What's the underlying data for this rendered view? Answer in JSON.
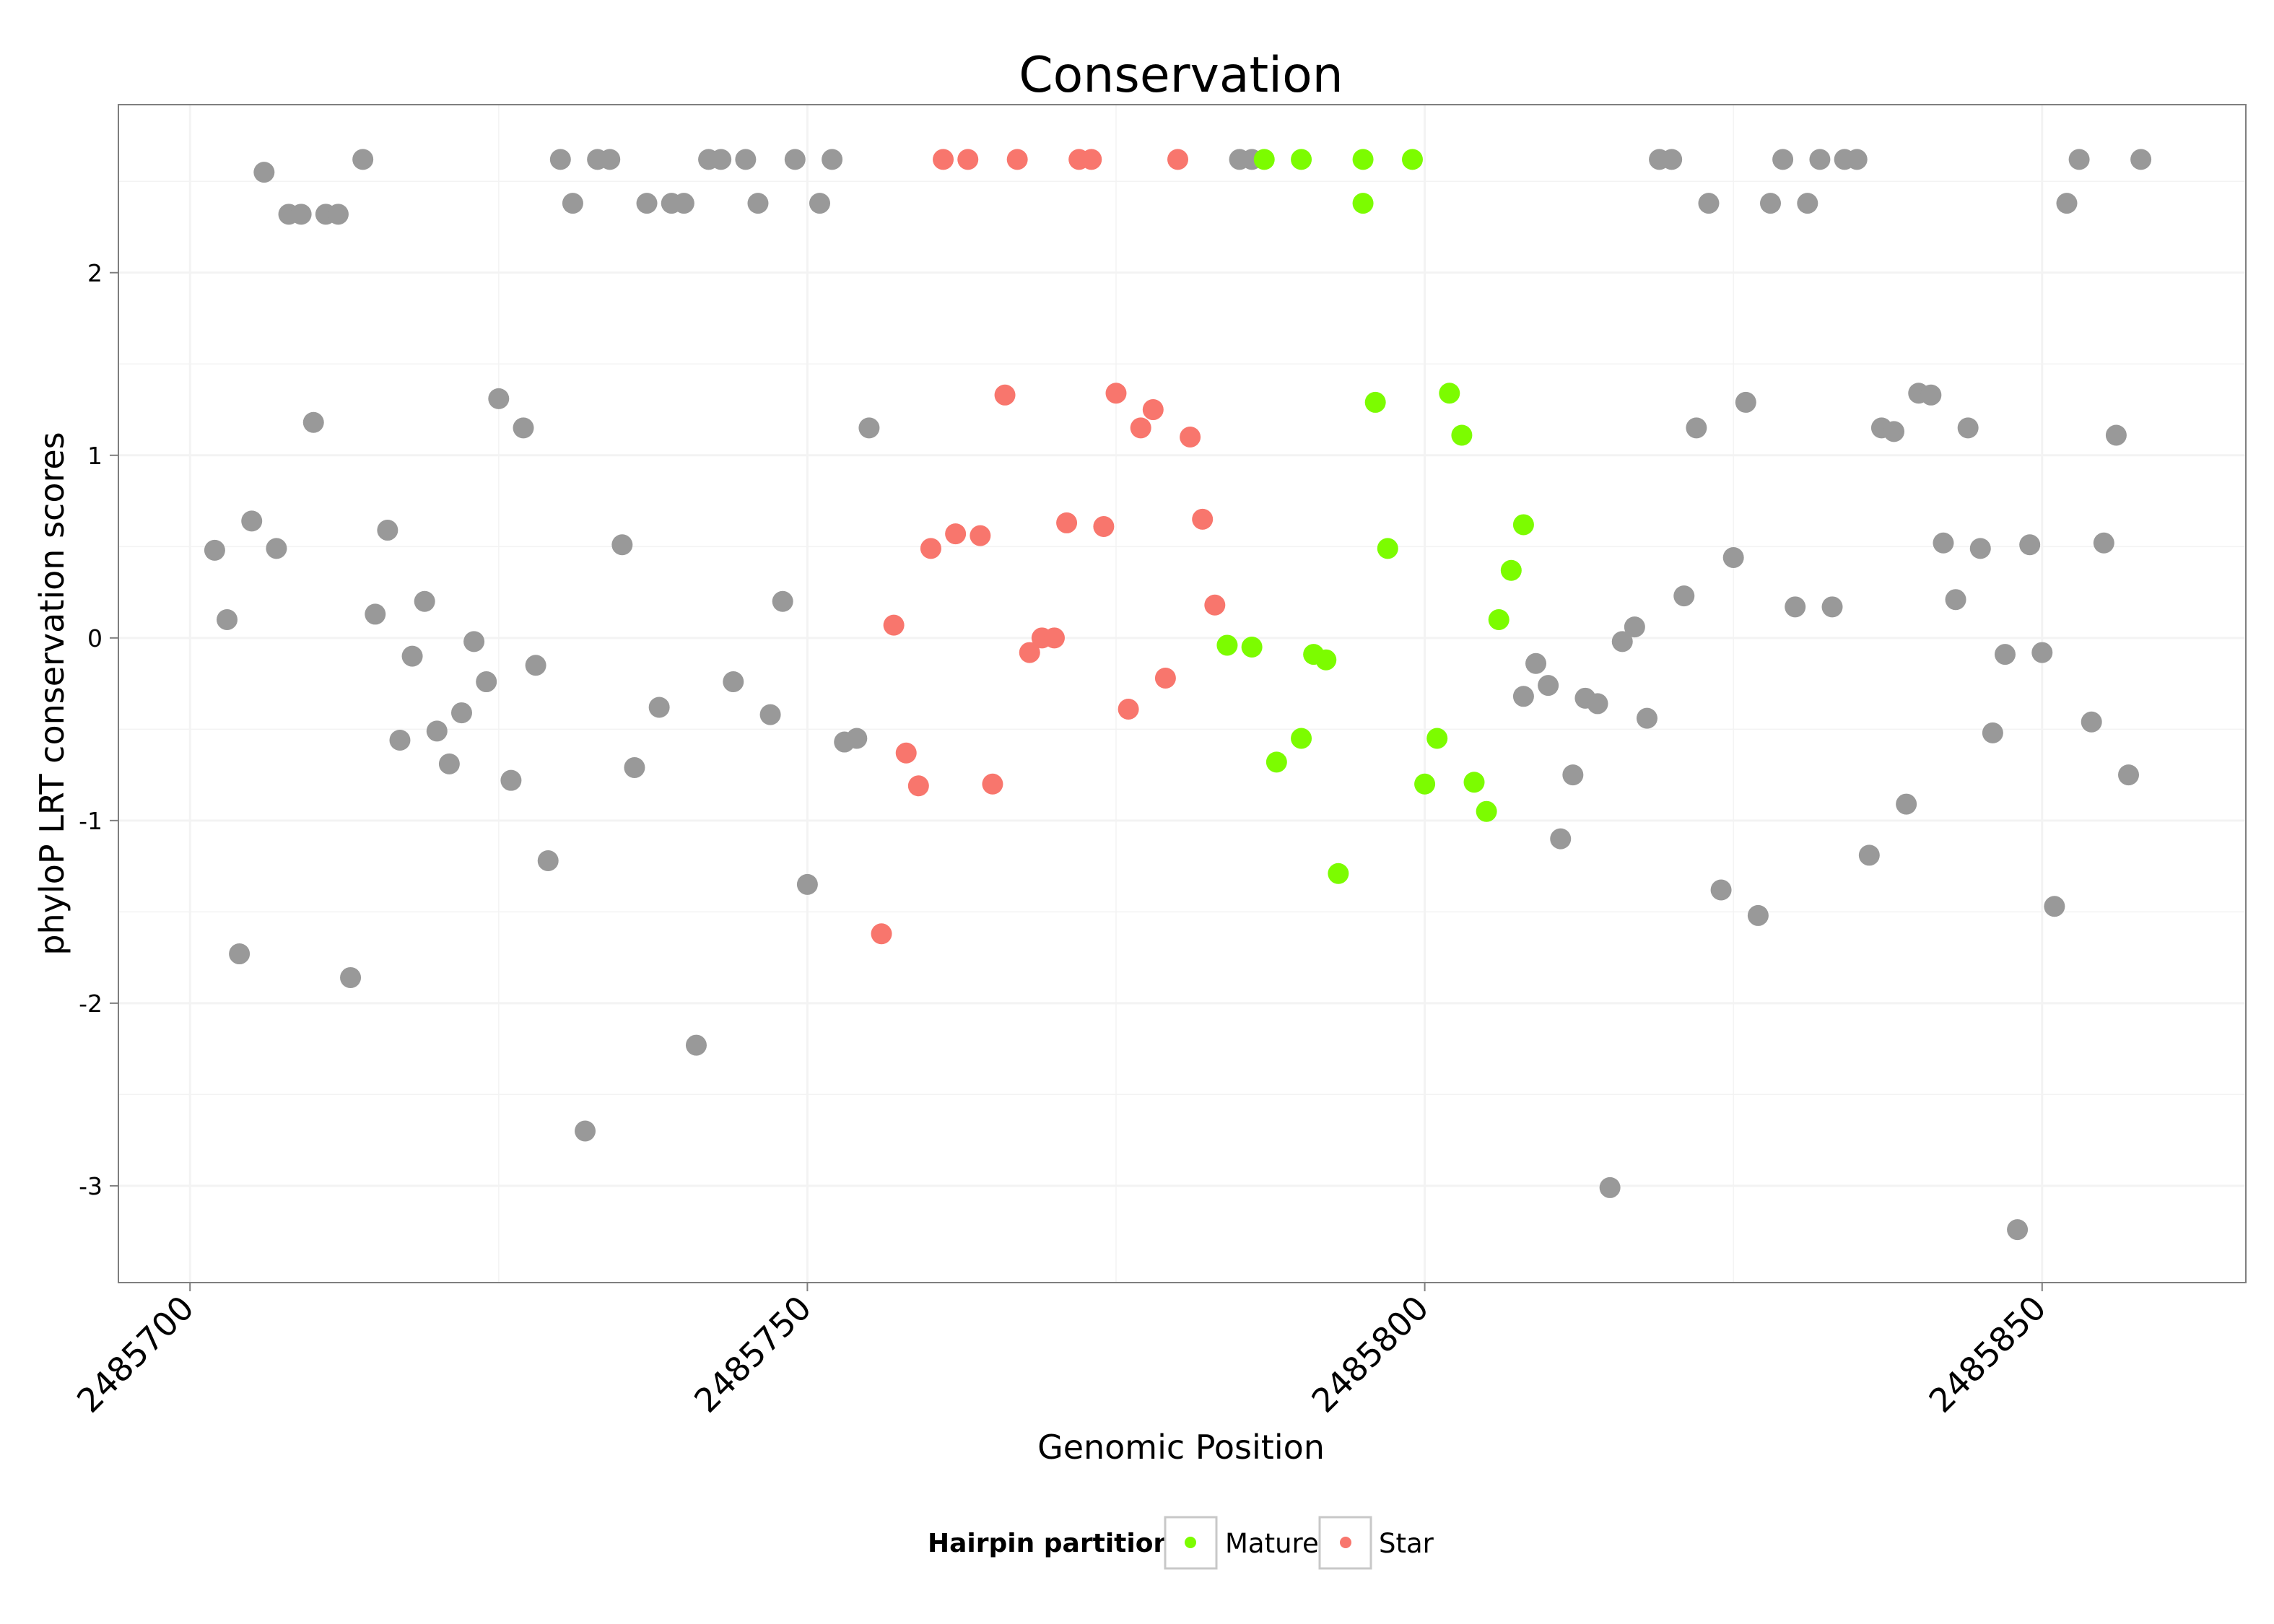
{
  "chart_data": {
    "type": "scatter",
    "title": "Conservation",
    "xlabel": "Genomic Position",
    "ylabel": "phyloP LRT conservation scores",
    "xlim": [
      2485694.2,
      2485866.5
    ],
    "ylim": [
      -3.53,
      2.92
    ],
    "xticks": [
      2485700,
      2485750,
      2485800,
      2485850
    ],
    "xtick_labels": [
      "2485700",
      "2485750",
      "2485800",
      "2485850"
    ],
    "yticks": [
      -3,
      -2,
      -1,
      0,
      1,
      2
    ],
    "ytick_labels": [
      "-3",
      "-2",
      "-1",
      "0",
      "1",
      "2"
    ],
    "grid": true,
    "legend": {
      "title": "Hairpin partition",
      "position": "bottom",
      "entries": [
        {
          "label": "Mature",
          "color": "#7CFC00"
        },
        {
          "label": "Star",
          "color": "#F8766D"
        }
      ]
    },
    "colors": {
      "other": "#999999",
      "Mature": "#7CFC00",
      "Star": "#F8766D",
      "panel_border": "#7f7f7f",
      "grid": "#f3f3f3"
    },
    "series": [
      {
        "name": "Other",
        "points": [
          [
            2485702,
            0.48
          ],
          [
            2485703,
            0.1
          ],
          [
            2485704,
            -1.73
          ],
          [
            2485705,
            0.64
          ],
          [
            2485706,
            2.55
          ],
          [
            2485707,
            0.49
          ],
          [
            2485708,
            2.32
          ],
          [
            2485709,
            2.32
          ],
          [
            2485710,
            1.18
          ],
          [
            2485711,
            2.32
          ],
          [
            2485712,
            2.32
          ],
          [
            2485713,
            -1.86
          ],
          [
            2485714,
            2.62
          ],
          [
            2485715,
            0.13
          ],
          [
            2485716,
            0.59
          ],
          [
            2485717,
            -0.56
          ],
          [
            2485718,
            -0.1
          ],
          [
            2485719,
            0.2
          ],
          [
            2485720,
            -0.51
          ],
          [
            2485721,
            -0.69
          ],
          [
            2485722,
            -0.41
          ],
          [
            2485723,
            -0.02
          ],
          [
            2485724,
            -0.24
          ],
          [
            2485725,
            1.31
          ],
          [
            2485726,
            -0.78
          ],
          [
            2485727,
            1.15
          ],
          [
            2485728,
            -0.15
          ],
          [
            2485729,
            -1.22
          ],
          [
            2485730,
            2.62
          ],
          [
            2485731,
            2.38
          ],
          [
            2485732,
            -2.7
          ],
          [
            2485733,
            2.62
          ],
          [
            2485734,
            2.62
          ],
          [
            2485735,
            0.51
          ],
          [
            2485736,
            -0.71
          ],
          [
            2485737,
            2.38
          ],
          [
            2485738,
            -0.38
          ],
          [
            2485739,
            2.38
          ],
          [
            2485740,
            2.38
          ],
          [
            2485741,
            -2.23
          ],
          [
            2485742,
            2.62
          ],
          [
            2485743,
            2.62
          ],
          [
            2485744,
            -0.24
          ],
          [
            2485745,
            2.62
          ],
          [
            2485746,
            2.38
          ],
          [
            2485747,
            -0.42
          ],
          [
            2485748,
            0.2
          ],
          [
            2485749,
            2.62
          ],
          [
            2485750,
            -1.35
          ],
          [
            2485751,
            2.38
          ],
          [
            2485752,
            2.62
          ],
          [
            2485753,
            -0.57
          ],
          [
            2485754,
            -0.55
          ],
          [
            2485755,
            1.15
          ],
          [
            2485785,
            2.62
          ],
          [
            2485786,
            2.62
          ],
          [
            2485808,
            -0.32
          ],
          [
            2485809,
            -0.14
          ],
          [
            2485810,
            -0.26
          ],
          [
            2485811,
            -1.1
          ],
          [
            2485812,
            -0.75
          ],
          [
            2485813,
            -0.33
          ],
          [
            2485814,
            -0.36
          ],
          [
            2485815,
            -3.01
          ],
          [
            2485816,
            -0.02
          ],
          [
            2485817,
            0.06
          ],
          [
            2485818,
            -0.44
          ],
          [
            2485819,
            2.62
          ],
          [
            2485820,
            2.62
          ],
          [
            2485821,
            0.23
          ],
          [
            2485822,
            1.15
          ],
          [
            2485823,
            2.38
          ],
          [
            2485824,
            -1.38
          ],
          [
            2485825,
            0.44
          ],
          [
            2485826,
            1.29
          ],
          [
            2485827,
            -1.52
          ],
          [
            2485828,
            2.38
          ],
          [
            2485829,
            2.62
          ],
          [
            2485830,
            0.17
          ],
          [
            2485831,
            2.38
          ],
          [
            2485832,
            2.62
          ],
          [
            2485833,
            0.17
          ],
          [
            2485834,
            2.62
          ],
          [
            2485835,
            2.62
          ],
          [
            2485836,
            -1.19
          ],
          [
            2485837,
            1.15
          ],
          [
            2485838,
            1.13
          ],
          [
            2485839,
            -0.91
          ],
          [
            2485840,
            1.34
          ],
          [
            2485841,
            1.33
          ],
          [
            2485842,
            0.52
          ],
          [
            2485843,
            0.21
          ],
          [
            2485844,
            1.15
          ],
          [
            2485845,
            0.49
          ],
          [
            2485846,
            -0.52
          ],
          [
            2485847,
            -0.09
          ],
          [
            2485848,
            -3.24
          ],
          [
            2485849,
            0.51
          ],
          [
            2485850,
            -0.08
          ],
          [
            2485851,
            -1.47
          ],
          [
            2485852,
            2.38
          ],
          [
            2485853,
            2.62
          ],
          [
            2485854,
            -0.46
          ],
          [
            2485855,
            0.52
          ],
          [
            2485856,
            1.11
          ],
          [
            2485857,
            -0.75
          ],
          [
            2485858,
            2.62
          ]
        ]
      },
      {
        "name": "Star",
        "points": [
          [
            2485756,
            -1.62
          ],
          [
            2485757,
            0.07
          ],
          [
            2485758,
            -0.63
          ],
          [
            2485759,
            -0.81
          ],
          [
            2485760,
            0.49
          ],
          [
            2485761,
            2.62
          ],
          [
            2485762,
            0.57
          ],
          [
            2485763,
            2.62
          ],
          [
            2485764,
            0.56
          ],
          [
            2485765,
            -0.8
          ],
          [
            2485766,
            1.33
          ],
          [
            2485767,
            2.62
          ],
          [
            2485768,
            -0.08
          ],
          [
            2485769,
            0.0
          ],
          [
            2485770,
            0.0
          ],
          [
            2485771,
            0.63
          ],
          [
            2485772,
            2.62
          ],
          [
            2485773,
            2.62
          ],
          [
            2485774,
            0.61
          ],
          [
            2485775,
            1.34
          ],
          [
            2485776,
            -0.39
          ],
          [
            2485777,
            1.15
          ],
          [
            2485778,
            1.25
          ],
          [
            2485779,
            -0.22
          ],
          [
            2485780,
            2.62
          ],
          [
            2485781,
            1.1
          ],
          [
            2485782,
            0.65
          ],
          [
            2485783,
            0.18
          ]
        ]
      },
      {
        "name": "Mature",
        "points": [
          [
            2485784,
            -0.04
          ],
          [
            2485787,
            2.62
          ],
          [
            2485786,
            -0.05
          ],
          [
            2485788,
            -0.68
          ],
          [
            2485790,
            2.62
          ],
          [
            2485790,
            -0.55
          ],
          [
            2485791,
            -0.09
          ],
          [
            2485792,
            -0.12
          ],
          [
            2485793,
            -1.29
          ],
          [
            2485795,
            2.62
          ],
          [
            2485795,
            2.38
          ],
          [
            2485796,
            1.29
          ],
          [
            2485797,
            0.49
          ],
          [
            2485799,
            2.62
          ],
          [
            2485800,
            -0.8
          ],
          [
            2485801,
            -0.55
          ],
          [
            2485802,
            1.34
          ],
          [
            2485803,
            1.11
          ],
          [
            2485804,
            -0.79
          ],
          [
            2485805,
            -0.95
          ],
          [
            2485806,
            0.1
          ],
          [
            2485807,
            0.37
          ],
          [
            2485808,
            0.62
          ]
        ]
      }
    ]
  }
}
